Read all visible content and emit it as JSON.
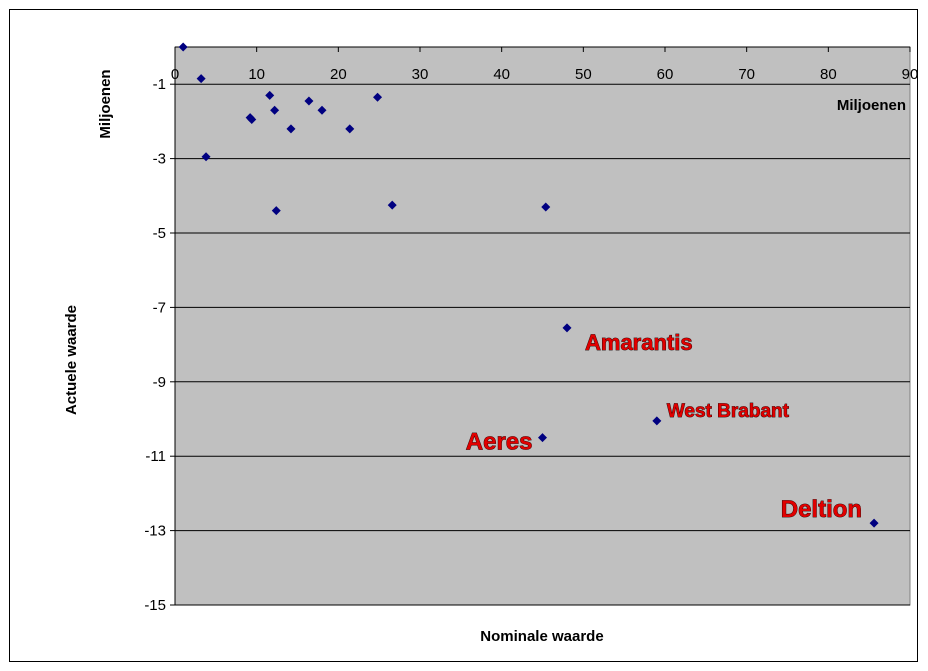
{
  "chart_data": {
    "type": "scatter",
    "xlabel": "Nominale waarde",
    "ylabel": "Actuele waarde",
    "x_unit_label": "Miljoenen",
    "y_unit_label": "Miljoenen",
    "xlim": [
      0,
      90
    ],
    "ylim": [
      -15,
      0
    ],
    "x_ticks": [
      "0",
      "10",
      "20",
      "30",
      "40",
      "50",
      "60",
      "70",
      "80",
      "90"
    ],
    "y_ticks": [
      "-1",
      "-3",
      "-5",
      "-7",
      "-9",
      "-11",
      "-13",
      "-15"
    ],
    "grid": "horizontal",
    "plot_background": "#c0c0c0",
    "marker_color": "#000080",
    "annotation_color": "#e00000",
    "points": [
      {
        "x": 1.0,
        "y": 0.0
      },
      {
        "x": 3.2,
        "y": -0.85
      },
      {
        "x": 3.8,
        "y": -2.95
      },
      {
        "x": 9.2,
        "y": -1.9
      },
      {
        "x": 9.4,
        "y": -1.95
      },
      {
        "x": 11.6,
        "y": -1.3
      },
      {
        "x": 12.2,
        "y": -1.7
      },
      {
        "x": 12.4,
        "y": -4.4
      },
      {
        "x": 14.2,
        "y": -2.2
      },
      {
        "x": 16.4,
        "y": -1.45
      },
      {
        "x": 18.0,
        "y": -1.7
      },
      {
        "x": 21.4,
        "y": -2.2
      },
      {
        "x": 24.8,
        "y": -1.35
      },
      {
        "x": 26.6,
        "y": -4.25
      },
      {
        "x": 45.4,
        "y": -4.3
      },
      {
        "x": 48.0,
        "y": -7.55,
        "label": "Amarantis"
      },
      {
        "x": 45.0,
        "y": -10.5,
        "label": "Aeres"
      },
      {
        "x": 59.0,
        "y": -10.05,
        "label": "West Brabant"
      },
      {
        "x": 85.6,
        "y": -12.8,
        "label": "Deltion"
      }
    ]
  }
}
